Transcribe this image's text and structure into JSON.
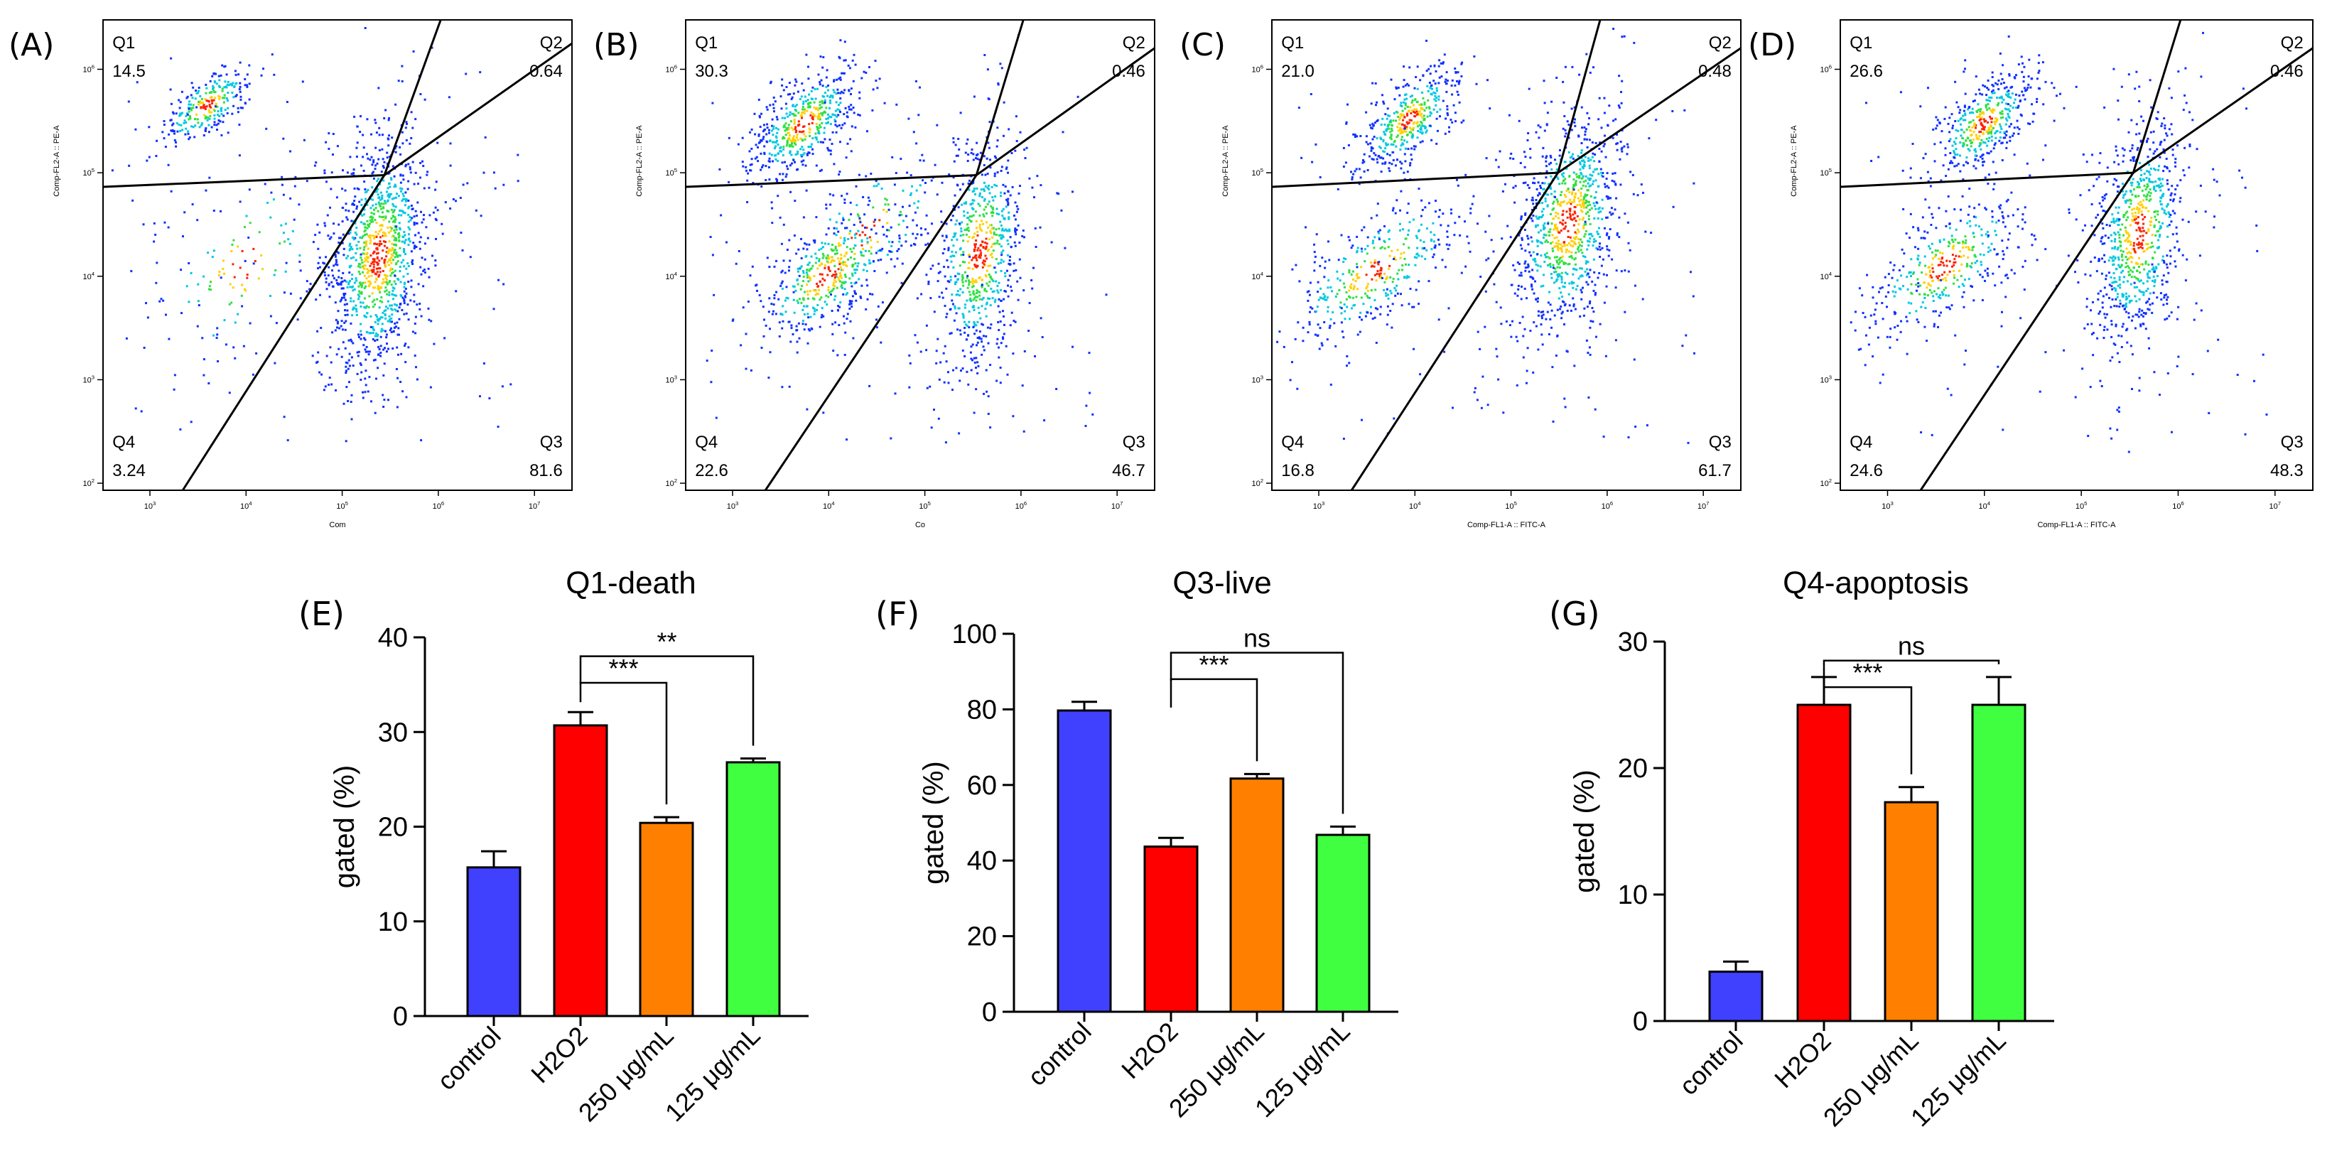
{
  "figure": {
    "flow_panels": [
      {
        "label": "(A)",
        "quadrants": {
          "Q1": "14.5",
          "Q2": "0.64",
          "Q3": "81.6",
          "Q4": "3.24"
        },
        "x_axis_label": "Com",
        "y_axis_label": "Comp-FL2-A :: PE-A",
        "x_ticks": [
          "10^3",
          "10^4",
          "10^5",
          "10^6",
          "10^7"
        ],
        "y_ticks": [
          "10^2",
          "10^3",
          "10^4",
          "10^5",
          "10^6"
        ]
      },
      {
        "label": "(B)",
        "quadrants": {
          "Q1": "30.3",
          "Q2": "0.46",
          "Q3": "46.7",
          "Q4": "22.6"
        },
        "x_axis_label": "Co",
        "y_axis_label": "Comp-FL2-A :: PE-A",
        "x_ticks": [
          "10^3",
          "10^4",
          "10^5",
          "10^6",
          "10^7"
        ],
        "y_ticks": [
          "10^2",
          "10^3",
          "10^4",
          "10^5",
          "10^6"
        ]
      },
      {
        "label": "(C)",
        "quadrants": {
          "Q1": "21.0",
          "Q2": "0.48",
          "Q3": "61.7",
          "Q4": "16.8"
        },
        "x_axis_label": "Comp-FL1-A :: FITC-A",
        "y_axis_label": "Comp-FL2-A :: PE-A",
        "x_ticks": [
          "10^3",
          "10^4",
          "10^5",
          "10^6",
          "10^7"
        ],
        "y_ticks": [
          "10^2",
          "10^3",
          "10^4",
          "10^5",
          "10^6"
        ]
      },
      {
        "label": "(D)",
        "quadrants": {
          "Q1": "26.6",
          "Q2": "0.46",
          "Q3": "48.3",
          "Q4": "24.6"
        },
        "x_axis_label": "Comp-FL1-A :: FITC-A",
        "y_axis_label": "Comp-FL2-A :: PE-A",
        "x_ticks": [
          "10^3",
          "10^4",
          "10^5",
          "10^6",
          "10^7"
        ],
        "y_ticks": [
          "10^2",
          "10^3",
          "10^4",
          "10^5",
          "10^6"
        ]
      }
    ]
  },
  "colors": {
    "control": "#4040ff",
    "H2O2": "#ff0000",
    "250 μg/mL": "#ff8000",
    "125 μg/mL": "#40ff40",
    "axis": "#000000"
  },
  "chart_data": [
    {
      "type": "bar",
      "panel_label": "(E)",
      "title": "Q1-death",
      "xlabel": "",
      "ylabel": "gated (%)",
      "ylim": [
        0,
        40
      ],
      "yticks": [
        0,
        10,
        20,
        30,
        40
      ],
      "categories": [
        "control",
        "H2O2",
        "250 μg/mL",
        "125 μg/mL"
      ],
      "values": [
        15.7,
        30.7,
        20.4,
        26.8
      ],
      "errors": [
        1.7,
        1.4,
        0.6,
        0.4
      ],
      "significance": [
        {
          "from": 1,
          "to": 2,
          "label": "***"
        },
        {
          "from": 1,
          "to": 3,
          "label": "**"
        }
      ]
    },
    {
      "type": "bar",
      "panel_label": "(F)",
      "title": "Q3-live",
      "xlabel": "",
      "ylabel": "gated (%)",
      "ylim": [
        0,
        100
      ],
      "yticks": [
        0,
        20,
        40,
        60,
        80,
        100
      ],
      "categories": [
        "control",
        "H2O2",
        "250 μg/mL",
        "125 μg/mL"
      ],
      "values": [
        79.7,
        43.7,
        61.7,
        46.8
      ],
      "errors": [
        2.3,
        2.3,
        1.2,
        2.2
      ],
      "significance": [
        {
          "from": 1,
          "to": 2,
          "label": "***"
        },
        {
          "from": 1,
          "to": 3,
          "label": "ns"
        }
      ]
    },
    {
      "type": "bar",
      "panel_label": "(G)",
      "title": "Q4-apoptosis",
      "xlabel": "",
      "ylabel": "gated (%)",
      "ylim": [
        0,
        30
      ],
      "yticks": [
        0,
        10,
        20,
        30
      ],
      "categories": [
        "control",
        "H2O2",
        "250 μg/mL",
        "125 μg/mL"
      ],
      "values": [
        3.9,
        25.0,
        17.3,
        25.0
      ],
      "errors": [
        0.8,
        2.2,
        1.2,
        2.2
      ],
      "significance": [
        {
          "from": 1,
          "to": 2,
          "label": "***"
        },
        {
          "from": 1,
          "to": 3,
          "label": "ns"
        }
      ]
    }
  ]
}
